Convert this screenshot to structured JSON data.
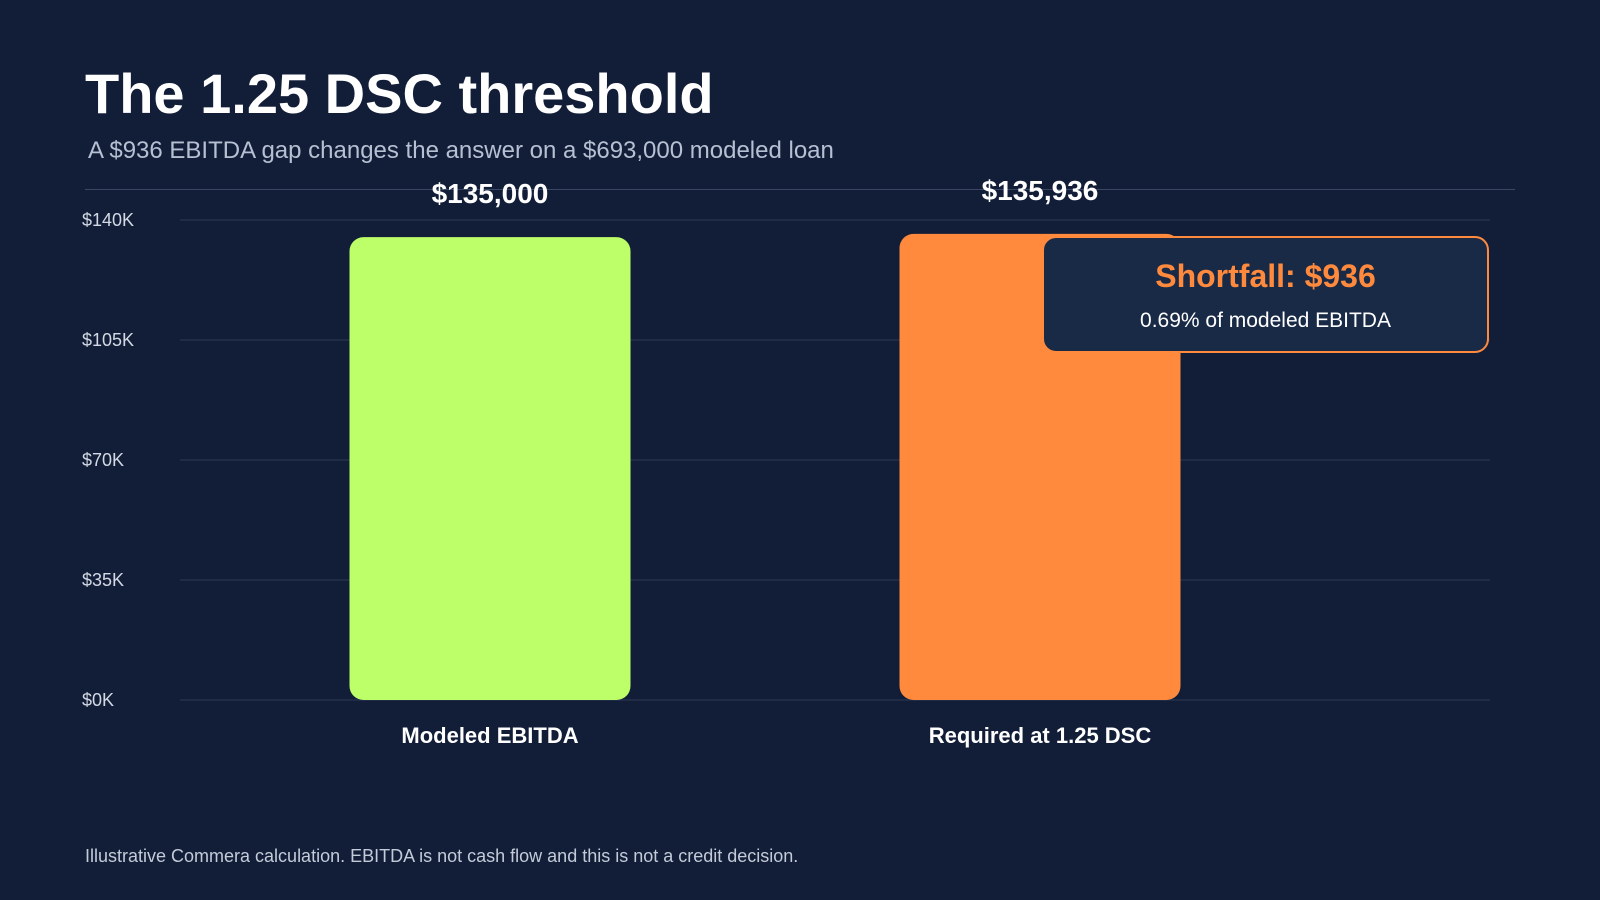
{
  "page": {
    "title": "The 1.25 DSC threshold",
    "subtitle": "A $936 EBITDA gap changes the answer on a $693,000 modeled loan",
    "footnote": "Illustrative Commera calculation. EBITDA is not cash flow and this is not a credit decision."
  },
  "callout": {
    "title": "Shortfall: $936",
    "subtitle": "0.69% of modeled EBITDA"
  },
  "colors": {
    "background": "#121e38",
    "modeled_bar": "#bdff68",
    "required_bar": "#ff8a3d",
    "gridline": "#2e3a55",
    "axis_text": "#d3d9e4",
    "label_text": "#ffffff"
  },
  "chart_data": {
    "type": "bar",
    "categories": [
      "Modeled EBITDA",
      "Required at 1.25 DSC"
    ],
    "values": [
      135000,
      135936
    ],
    "value_labels": [
      "$135,000",
      "$135,936"
    ],
    "ylim": [
      0,
      140000
    ],
    "yticks": [
      0,
      35000,
      70000,
      105000,
      140000
    ],
    "ytick_labels": [
      "$0K",
      "$35K",
      "$70K",
      "$105K",
      "$140K"
    ],
    "xlabel": "",
    "ylabel": "",
    "grid": true
  }
}
